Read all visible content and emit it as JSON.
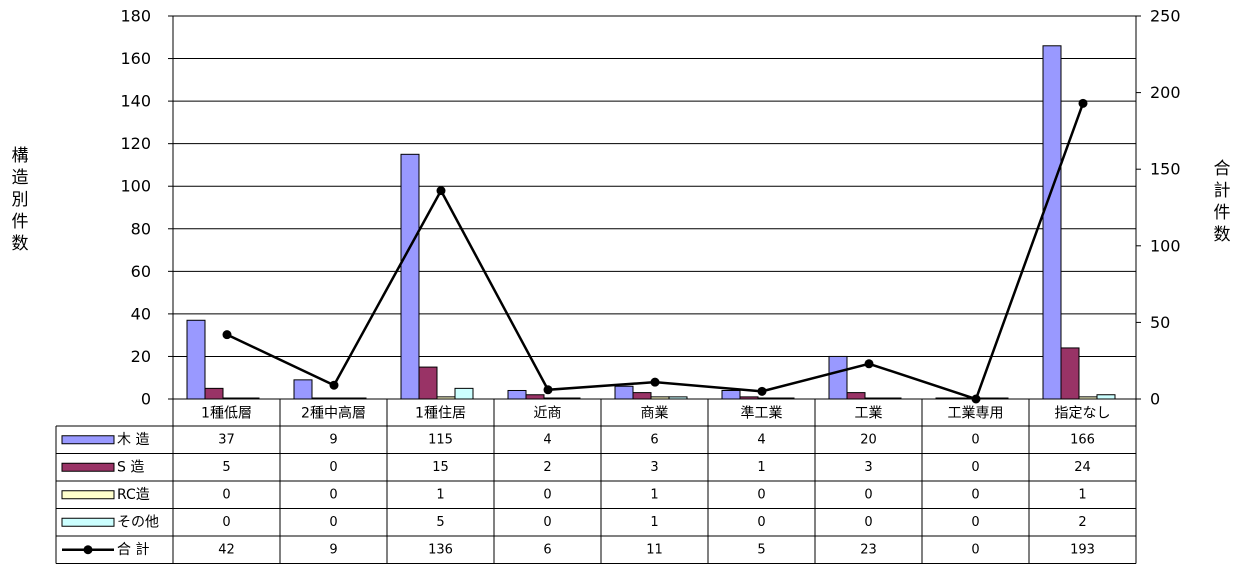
{
  "chart_data": {
    "type": "bar",
    "categories": [
      "1種低層",
      "2種中高層",
      "1種住居",
      "近商",
      "商業",
      "準工業",
      "工業",
      "工業専用",
      "指定なし"
    ],
    "series": [
      {
        "name": "木 造",
        "values": [
          37,
          9,
          115,
          4,
          6,
          4,
          20,
          0,
          166
        ],
        "color": "#9999ff",
        "kind": "bar"
      },
      {
        "name": "S 造",
        "values": [
          5,
          0,
          15,
          2,
          3,
          1,
          3,
          0,
          24
        ],
        "color": "#993366",
        "kind": "bar"
      },
      {
        "name": "RC造",
        "values": [
          0,
          0,
          1,
          0,
          1,
          0,
          0,
          0,
          1
        ],
        "color": "#ffffcc",
        "kind": "bar"
      },
      {
        "name": "その他",
        "values": [
          0,
          0,
          5,
          0,
          1,
          0,
          0,
          0,
          2
        ],
        "color": "#ccffff",
        "kind": "bar"
      },
      {
        "name": "合 計",
        "values": [
          42,
          9,
          136,
          6,
          11,
          5,
          23,
          0,
          193
        ],
        "color": "#000000",
        "kind": "line",
        "axis": "right"
      }
    ],
    "ylabel": "構造別件数",
    "ylabel_right": "合計件数",
    "ylim": [
      0,
      180
    ],
    "yticks": [
      0,
      20,
      40,
      60,
      80,
      100,
      120,
      140,
      160,
      180
    ],
    "ylim_right": [
      0,
      250
    ],
    "yticks_right": [
      0,
      50,
      100,
      150,
      200,
      250
    ],
    "grid": true,
    "legend": "data-table-below"
  }
}
